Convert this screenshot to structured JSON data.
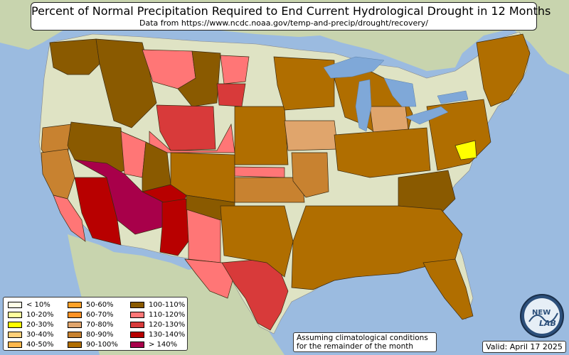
{
  "title": "Percent of Normal Precipitation Required to End Current Hydrological Drought in 12 Months",
  "subtitle": "Data from https://www.ncdc.noaa.gov/temp-and-precip/drought/recovery/",
  "note_line1": "Assuming climatological conditions",
  "note_line2": "for the remainder of the month",
  "valid": "Valid: April 17 2025",
  "logo_text_top": "NEW",
  "logo_text_bottom": "LAB",
  "colors": {
    "ocean": "#9bbbe0",
    "land_no_drought": "#dfe3c4",
    "foreign_land": "#c8d4ae",
    "lakes": "#7fa8d8"
  },
  "legend": [
    {
      "label": "< 10%",
      "color": "#ffffe6"
    },
    {
      "label": "10-20%",
      "color": "#ffff9e"
    },
    {
      "label": "20-30%",
      "color": "#ffff00"
    },
    {
      "label": "30-40%",
      "color": "#ffd07a"
    },
    {
      "label": "40-50%",
      "color": "#ffb84d"
    },
    {
      "label": "50-60%",
      "color": "#ffa229"
    },
    {
      "label": "60-70%",
      "color": "#ff9224"
    },
    {
      "label": "70-80%",
      "color": "#e0a56c"
    },
    {
      "label": "80-90%",
      "color": "#c88230"
    },
    {
      "label": "90-100%",
      "color": "#b06e00"
    },
    {
      "label": "100-110%",
      "color": "#8a5a00"
    },
    {
      "label": "110-120%",
      "color": "#ff7676"
    },
    {
      "label": "120-130%",
      "color": "#d83a3a"
    },
    {
      "label": "130-140%",
      "color": "#b80000"
    },
    {
      "label": "> 140%",
      "color": "#a8004a"
    }
  ],
  "regions": [
    {
      "name": "pacific-northwest-coast",
      "color": "#8a5a00"
    },
    {
      "name": "oregon-interior",
      "color": "#c88230"
    },
    {
      "name": "idaho-montana-west",
      "color": "#8a5a00"
    },
    {
      "name": "montana-central",
      "color": "#ff7676"
    },
    {
      "name": "montana-east",
      "color": "#8a5a00"
    },
    {
      "name": "north-dakota",
      "color": "#ff7676"
    },
    {
      "name": "south-dakota-west",
      "color": "#d83a3a"
    },
    {
      "name": "wyoming-red",
      "color": "#d83a3a"
    },
    {
      "name": "wyoming-pink",
      "color": "#ff7676"
    },
    {
      "name": "nevada",
      "color": "#8a5a00"
    },
    {
      "name": "california-north",
      "color": "#c88230"
    },
    {
      "name": "california-south",
      "color": "#b06e00"
    },
    {
      "name": "southern-california-coast",
      "color": "#ff7676"
    },
    {
      "name": "arizona-west",
      "color": "#b80000"
    },
    {
      "name": "arizona-central",
      "color": "#a8004a"
    },
    {
      "name": "utah-east",
      "color": "#8a5a00"
    },
    {
      "name": "utah-pink",
      "color": "#ff7676"
    },
    {
      "name": "colorado-west",
      "color": "#b80000"
    },
    {
      "name": "colorado-east",
      "color": "#b06e00"
    },
    {
      "name": "new-mexico-west",
      "color": "#b80000"
    },
    {
      "name": "new-mexico-east",
      "color": "#ff7676"
    },
    {
      "name": "west-texas",
      "color": "#ff7676"
    },
    {
      "name": "texas-central",
      "color": "#d83a3a"
    },
    {
      "name": "texas-east",
      "color": "#b06e00"
    },
    {
      "name": "oklahoma-panhandle",
      "color": "#8a5a00"
    },
    {
      "name": "kansas-pink",
      "color": "#ff7676"
    },
    {
      "name": "kansas-south",
      "color": "#c88230"
    },
    {
      "name": "nebraska",
      "color": "#b06e00"
    },
    {
      "name": "minnesota-upper-midwest",
      "color": "#b06e00"
    },
    {
      "name": "iowa-orange",
      "color": "#e0a56c"
    },
    {
      "name": "missouri",
      "color": "#c88230"
    },
    {
      "name": "gulf-coast-southeast",
      "color": "#b06e00"
    },
    {
      "name": "florida",
      "color": "#b06e00"
    },
    {
      "name": "appalachia",
      "color": "#8a5a00"
    },
    {
      "name": "ohio-valley",
      "color": "#b06e00"
    },
    {
      "name": "mid-atlantic",
      "color": "#b06e00"
    },
    {
      "name": "maryland",
      "color": "#ffff00"
    },
    {
      "name": "new-england",
      "color": "#b06e00"
    },
    {
      "name": "michigan",
      "color": "#b06e00"
    },
    {
      "name": "lower-michigan-orange",
      "color": "#e0a56c"
    }
  ]
}
